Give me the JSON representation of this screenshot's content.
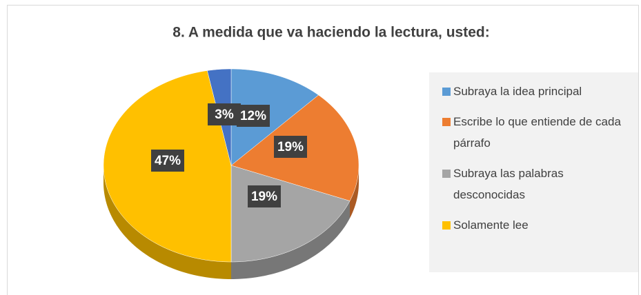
{
  "chart_data": {
    "type": "pie",
    "title": "8.  A medida que va haciendo la lectura, usted:",
    "categories": [
      "Subraya la idea principal",
      "Escribe lo que entiende de cada párrafo",
      "Subraya las palabras desconocidas",
      "Solamente lee",
      null
    ],
    "values": [
      12,
      19,
      19,
      47,
      3
    ],
    "value_labels": [
      "12%",
      "19%",
      "19%",
      "47%",
      "3%"
    ],
    "colors": [
      "#5b9bd5",
      "#ed7d31",
      "#a5a5a5",
      "#ffc000",
      "#4472c4"
    ],
    "legend": "right"
  }
}
